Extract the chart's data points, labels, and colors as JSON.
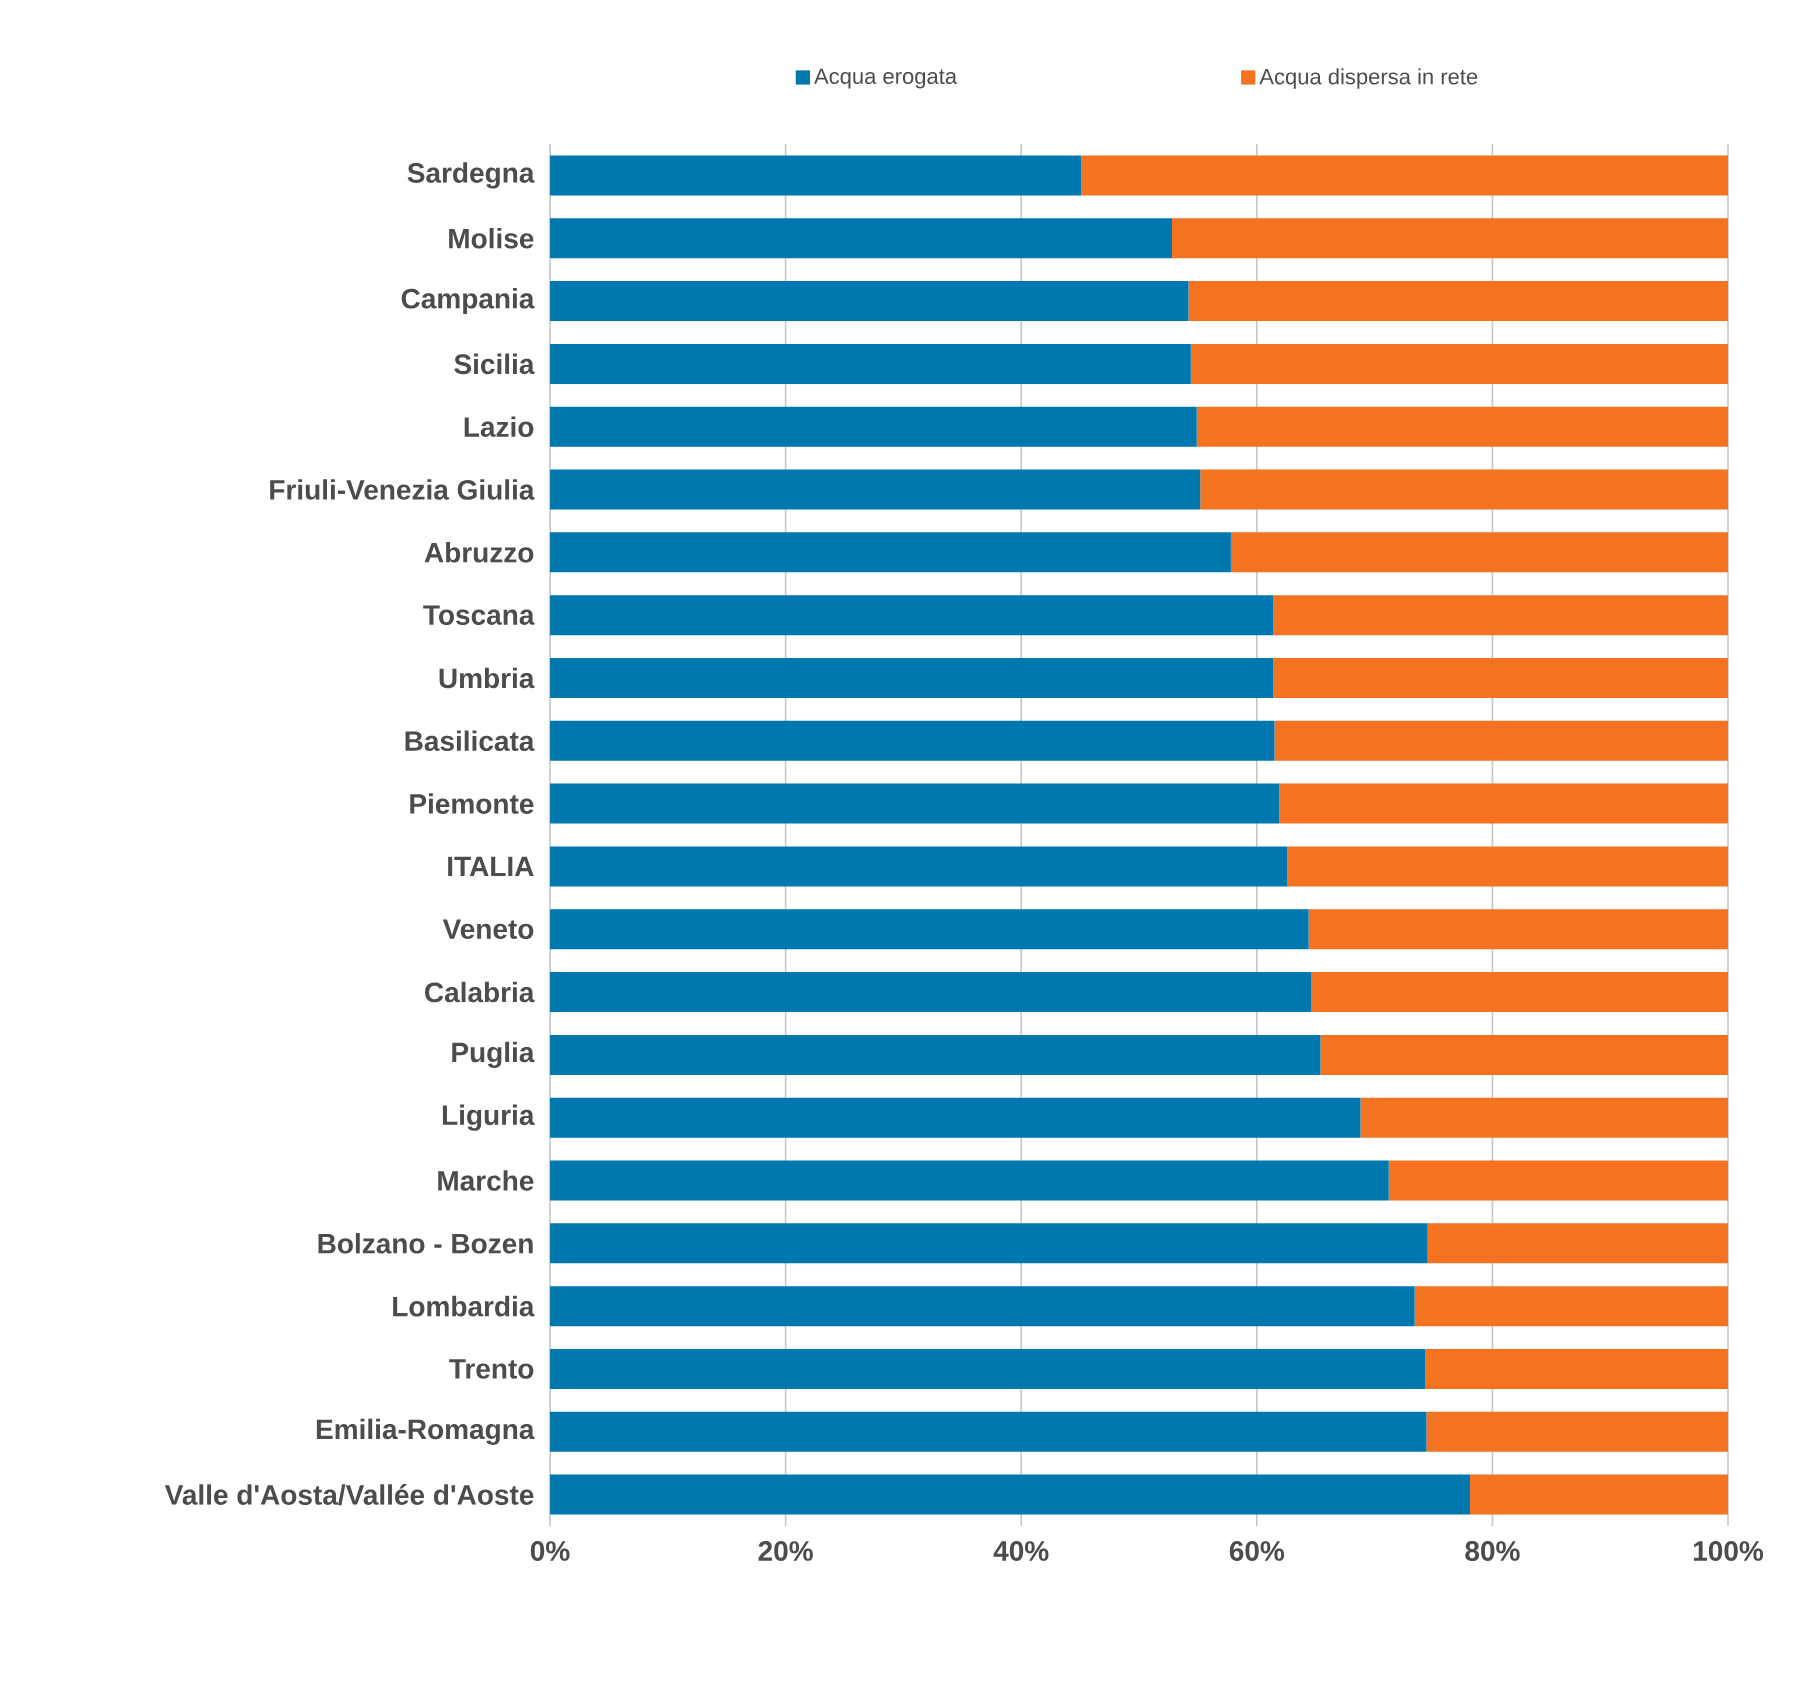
{
  "chart_data": {
    "type": "bar",
    "orientation": "horizontal",
    "stacked": true,
    "categories": [
      "Sardegna",
      "Molise",
      "Campania",
      "Sicilia",
      "Lazio",
      "Friuli-Venezia Giulia",
      "Abruzzo",
      "Toscana",
      "Umbria",
      "Basilicata",
      "Piemonte",
      "ITALIA",
      "Veneto",
      "Calabria",
      "Puglia",
      "Liguria",
      "Marche",
      "Bolzano - Bozen",
      "Lombardia",
      "Trento",
      "Emilia-Romagna",
      "Valle d'Aosta/Vallée d'Aoste"
    ],
    "series": [
      {
        "name": "Acqua erogata",
        "color": "#0077ae",
        "values": [
          45.1,
          52.8,
          54.2,
          54.4,
          54.9,
          55.2,
          57.8,
          61.4,
          61.4,
          61.5,
          61.9,
          62.6,
          64.4,
          64.6,
          65.4,
          68.8,
          71.2,
          74.5,
          73.4,
          74.3,
          74.4,
          78.1
        ]
      },
      {
        "name": "Acqua dispersa in rete",
        "color": "#f37321",
        "values": [
          54.9,
          47.2,
          45.8,
          45.6,
          45.1,
          44.8,
          42.2,
          38.6,
          38.6,
          38.5,
          38.1,
          37.4,
          35.6,
          35.4,
          34.6,
          31.2,
          28.8,
          25.5,
          26.6,
          25.7,
          25.6,
          21.9
        ]
      }
    ],
    "xlim": [
      0,
      100
    ],
    "xticks": [
      {
        "value": 0,
        "label": "0%"
      },
      {
        "value": 20,
        "label": "20%"
      },
      {
        "value": 40,
        "label": "40%"
      },
      {
        "value": 60,
        "label": "60%"
      },
      {
        "value": 80,
        "label": "80%"
      },
      {
        "value": 100,
        "label": "100%"
      }
    ],
    "grid": "x",
    "legend": "top"
  }
}
